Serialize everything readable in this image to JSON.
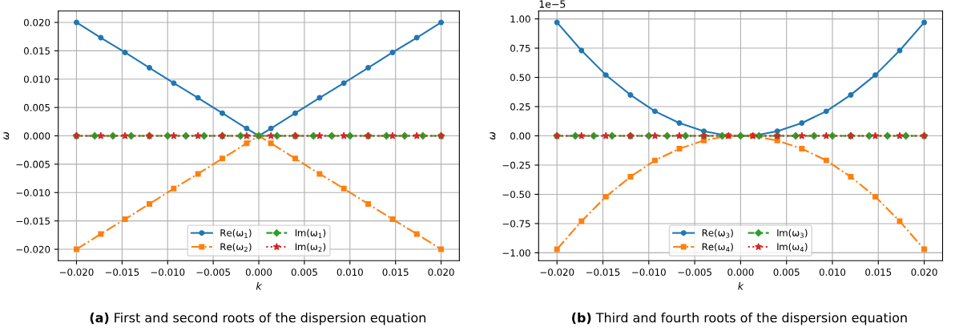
{
  "chart_data": [
    {
      "type": "line",
      "xlabel": "k",
      "ylabel": "ω",
      "grid": true,
      "legend": "bottom",
      "annotations": [
        "(a)",
        "First and second roots of the dispersion equation"
      ],
      "xlim": [
        -0.022,
        0.022
      ],
      "ylim": [
        -0.022,
        0.022
      ],
      "xticks": [
        {
          "value": -0.02,
          "label": "−0.020"
        },
        {
          "value": -0.015,
          "label": "−0.015"
        },
        {
          "value": -0.01,
          "label": "−0.010"
        },
        {
          "value": -0.005,
          "label": "−0.005"
        },
        {
          "value": 0,
          "label": "0.000"
        },
        {
          "value": 0.005,
          "label": "0.005"
        },
        {
          "value": 0.01,
          "label": "0.010"
        },
        {
          "value": 0.015,
          "label": "0.015"
        },
        {
          "value": 0.02,
          "label": "0.020"
        }
      ],
      "yticks": [
        {
          "value": -0.02,
          "label": "−0.020"
        },
        {
          "value": -0.015,
          "label": "−0.015"
        },
        {
          "value": -0.01,
          "label": "−0.010"
        },
        {
          "value": -0.005,
          "label": "−0.005"
        },
        {
          "value": 0,
          "label": "0.000"
        },
        {
          "value": 0.005,
          "label": "0.005"
        },
        {
          "value": 0.01,
          "label": "0.010"
        },
        {
          "value": 0.015,
          "label": "0.015"
        },
        {
          "value": 0.02,
          "label": "0.020"
        }
      ],
      "x": [
        -0.02,
        -0.01733,
        -0.01467,
        -0.012,
        -0.00933,
        -0.00667,
        -0.004,
        -0.00133,
        0.00133,
        0.004,
        0.00667,
        0.00933,
        0.012,
        0.01467,
        0.01733,
        0.02
      ],
      "series": [
        {
          "name": "Re(ω$_{1}$)",
          "color": "#1f77b4",
          "marker": "circle",
          "line_style": "solid",
          "x": [
            -0.02,
            -0.01733,
            -0.01467,
            -0.012,
            -0.00933,
            -0.00667,
            -0.004,
            -0.00133,
            0,
            0.00133,
            0.004,
            0.00667,
            0.00933,
            0.012,
            0.01467,
            0.01733,
            0.02
          ],
          "values": [
            0.02,
            0.0173,
            0.0147,
            0.012,
            0.0093,
            0.0067,
            0.004,
            0.0013,
            0,
            0.0013,
            0.004,
            0.0067,
            0.0093,
            0.012,
            0.0147,
            0.0173,
            0.02
          ]
        },
        {
          "name": "Re(ω$_{2}$)",
          "color": "#ff7f0e",
          "marker": "square",
          "line_style": "dashdot",
          "x": [
            -0.02,
            -0.01733,
            -0.01467,
            -0.012,
            -0.00933,
            -0.00667,
            -0.004,
            -0.00133,
            0,
            0.00133,
            0.004,
            0.00667,
            0.00933,
            0.012,
            0.01467,
            0.01733,
            0.02
          ],
          "values": [
            -0.02,
            -0.0173,
            -0.0147,
            -0.012,
            -0.0093,
            -0.0067,
            -0.004,
            -0.0013,
            0,
            -0.0013,
            -0.004,
            -0.0067,
            -0.0093,
            -0.012,
            -0.0147,
            -0.0173,
            -0.02
          ]
        },
        {
          "name": "Im(ω$_{1}$)",
          "color": "#2ca02c",
          "marker": "diamond",
          "line_style": "dashed",
          "x": [
            -0.02,
            -0.018,
            -0.016,
            -0.014,
            -0.012,
            -0.01,
            -0.008,
            -0.006,
            -0.004,
            -0.002,
            0,
            0.002,
            0.004,
            0.006,
            0.008,
            0.01,
            0.012,
            0.014,
            0.016,
            0.018,
            0.02
          ],
          "values": [
            0,
            0,
            0,
            0,
            0,
            0,
            0,
            0,
            0,
            0,
            0,
            0,
            0,
            0,
            0,
            0,
            0,
            0,
            0,
            0,
            0
          ]
        },
        {
          "name": "Im(ω$_{2}$)",
          "color": "#d62728",
          "marker": "star",
          "line_style": "dotted",
          "values": [
            0,
            0,
            0,
            0,
            0,
            0,
            0,
            0,
            0,
            0,
            0,
            0,
            0,
            0,
            0,
            0
          ]
        }
      ]
    },
    {
      "type": "line",
      "xlabel": "k",
      "ylabel": "ω",
      "grid": true,
      "legend": "bottom",
      "annotations": [
        "1e−5",
        "(b)",
        "Third and fourth roots of the dispersion equation"
      ],
      "xlim": [
        -0.022,
        0.022
      ],
      "ylim": [
        -1.067,
        1.067
      ],
      "xticks": [
        {
          "value": -0.02,
          "label": "−0.020"
        },
        {
          "value": -0.015,
          "label": "−0.015"
        },
        {
          "value": -0.01,
          "label": "−0.010"
        },
        {
          "value": -0.005,
          "label": "−0.005"
        },
        {
          "value": 0,
          "label": "0.000"
        },
        {
          "value": 0.005,
          "label": "0.005"
        },
        {
          "value": 0.01,
          "label": "0.010"
        },
        {
          "value": 0.015,
          "label": "0.015"
        },
        {
          "value": 0.02,
          "label": "0.020"
        }
      ],
      "yticks": [
        {
          "value": -1,
          "label": "−1.00"
        },
        {
          "value": -0.75,
          "label": "−0.75"
        },
        {
          "value": -0.5,
          "label": "−0.50"
        },
        {
          "value": -0.25,
          "label": "−0.25"
        },
        {
          "value": 0,
          "label": "0.00"
        },
        {
          "value": 0.25,
          "label": "0.25"
        },
        {
          "value": 0.5,
          "label": "0.50"
        },
        {
          "value": 0.75,
          "label": "0.75"
        },
        {
          "value": 1,
          "label": "1.00"
        }
      ],
      "x": [
        -0.02,
        -0.01733,
        -0.01467,
        -0.012,
        -0.00933,
        -0.00667,
        -0.004,
        -0.00133,
        0.00133,
        0.004,
        0.00667,
        0.00933,
        0.012,
        0.01467,
        0.01733,
        0.02
      ],
      "series": [
        {
          "name": "Re(ω$_{3}$)",
          "color": "#1f77b4",
          "marker": "circle",
          "line_style": "solid",
          "values": [
            0.97,
            0.73,
            0.52,
            0.35,
            0.21,
            0.11,
            0.04,
            0.0,
            0.0,
            0.04,
            0.11,
            0.21,
            0.35,
            0.52,
            0.73,
            0.97
          ]
        },
        {
          "name": "Re(ω$_{4}$)",
          "color": "#ff7f0e",
          "marker": "square",
          "line_style": "dashdot",
          "values": [
            -0.97,
            -0.73,
            -0.52,
            -0.35,
            -0.21,
            -0.11,
            -0.04,
            0.0,
            0.0,
            -0.04,
            -0.11,
            -0.21,
            -0.35,
            -0.52,
            -0.73,
            -0.97
          ]
        },
        {
          "name": "Im(ω$_{3}$)",
          "color": "#2ca02c",
          "marker": "diamond",
          "line_style": "dashed",
          "x": [
            -0.02,
            -0.018,
            -0.016,
            -0.014,
            -0.012,
            -0.01,
            -0.008,
            -0.006,
            -0.004,
            -0.002,
            0,
            0.002,
            0.004,
            0.006,
            0.008,
            0.01,
            0.012,
            0.014,
            0.016,
            0.018,
            0.02
          ],
          "values": [
            0,
            0,
            0,
            0,
            0,
            0,
            0,
            0,
            0,
            0,
            0,
            0,
            0,
            0,
            0,
            0,
            0,
            0,
            0,
            0,
            0
          ]
        },
        {
          "name": "Im(ω$_{4}$)",
          "color": "#d62728",
          "marker": "star",
          "line_style": "dotted",
          "values": [
            0,
            0,
            0,
            0,
            0,
            0,
            0,
            0,
            0,
            0,
            0,
            0,
            0,
            0,
            0,
            0
          ]
        }
      ]
    }
  ]
}
